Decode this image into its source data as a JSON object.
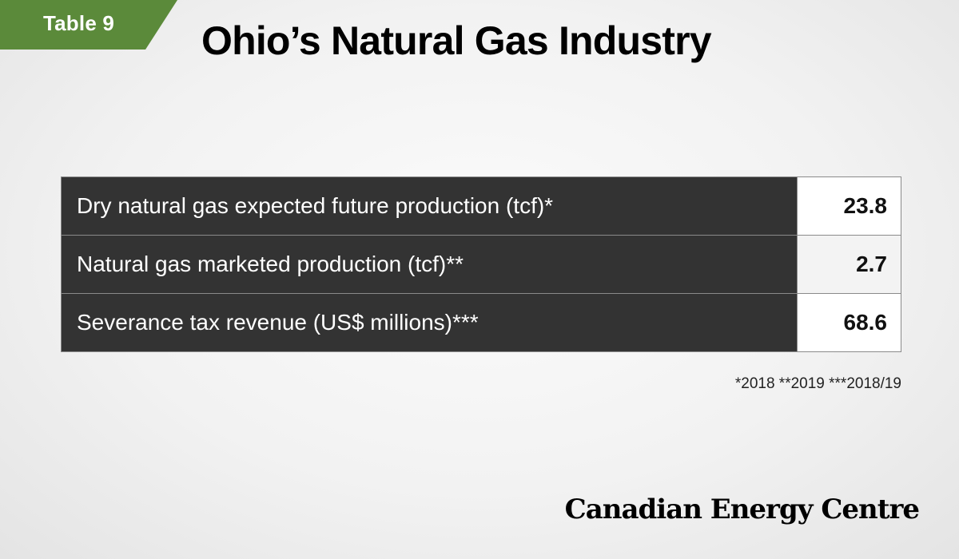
{
  "badge": {
    "label": "Table 9"
  },
  "header": {
    "title": "Ohio’s Natural Gas Industry"
  },
  "table": {
    "rows": [
      {
        "label": "Dry natural gas expected future production (tcf)*",
        "value": "23.8"
      },
      {
        "label": "Natural gas marketed production (tcf)**",
        "value": "2.7"
      },
      {
        "label": "Severance tax revenue (US$ millions)***",
        "value": "68.6"
      }
    ]
  },
  "footnote": "*2018 **2019 ***2018/19",
  "logo": {
    "text": "Canadian Energy Centre"
  },
  "colors": {
    "badge": "#5b8a3a",
    "label_cell": "#333333",
    "value_cell": "#ffffff"
  }
}
